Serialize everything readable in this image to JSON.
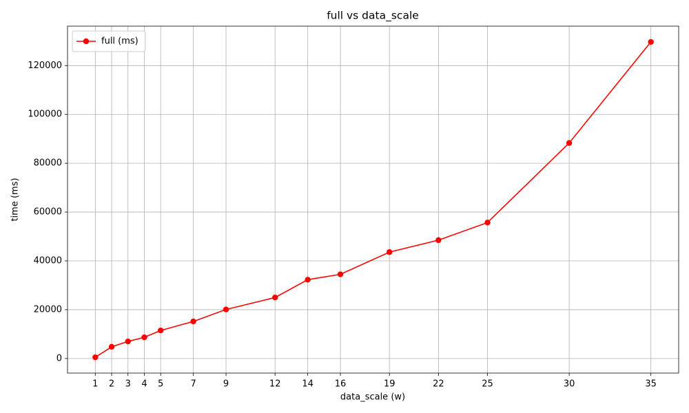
{
  "chart_data": {
    "type": "line",
    "title": "full vs data_scale",
    "xlabel": "data_scale (w)",
    "ylabel": "time (ms)",
    "x": [
      1,
      2,
      3,
      4,
      5,
      7,
      9,
      12,
      14,
      16,
      19,
      22,
      25,
      30,
      35
    ],
    "series": [
      {
        "name": "full (ms)",
        "color": "#ff0000",
        "values": [
          500,
          4800,
          7000,
          8700,
          11500,
          15200,
          20100,
          25000,
          32300,
          34500,
          43600,
          48500,
          55700,
          88300,
          129700
        ]
      }
    ],
    "xlim": [
      -0.7,
      36.7
    ],
    "ylim": [
      -5960,
      136160
    ],
    "xticks": [
      1,
      2,
      3,
      4,
      5,
      7,
      9,
      12,
      14,
      16,
      19,
      22,
      25,
      30,
      35
    ],
    "yticks": [
      0,
      20000,
      40000,
      60000,
      80000,
      100000,
      120000
    ],
    "grid": true,
    "legend": "upper-left"
  }
}
